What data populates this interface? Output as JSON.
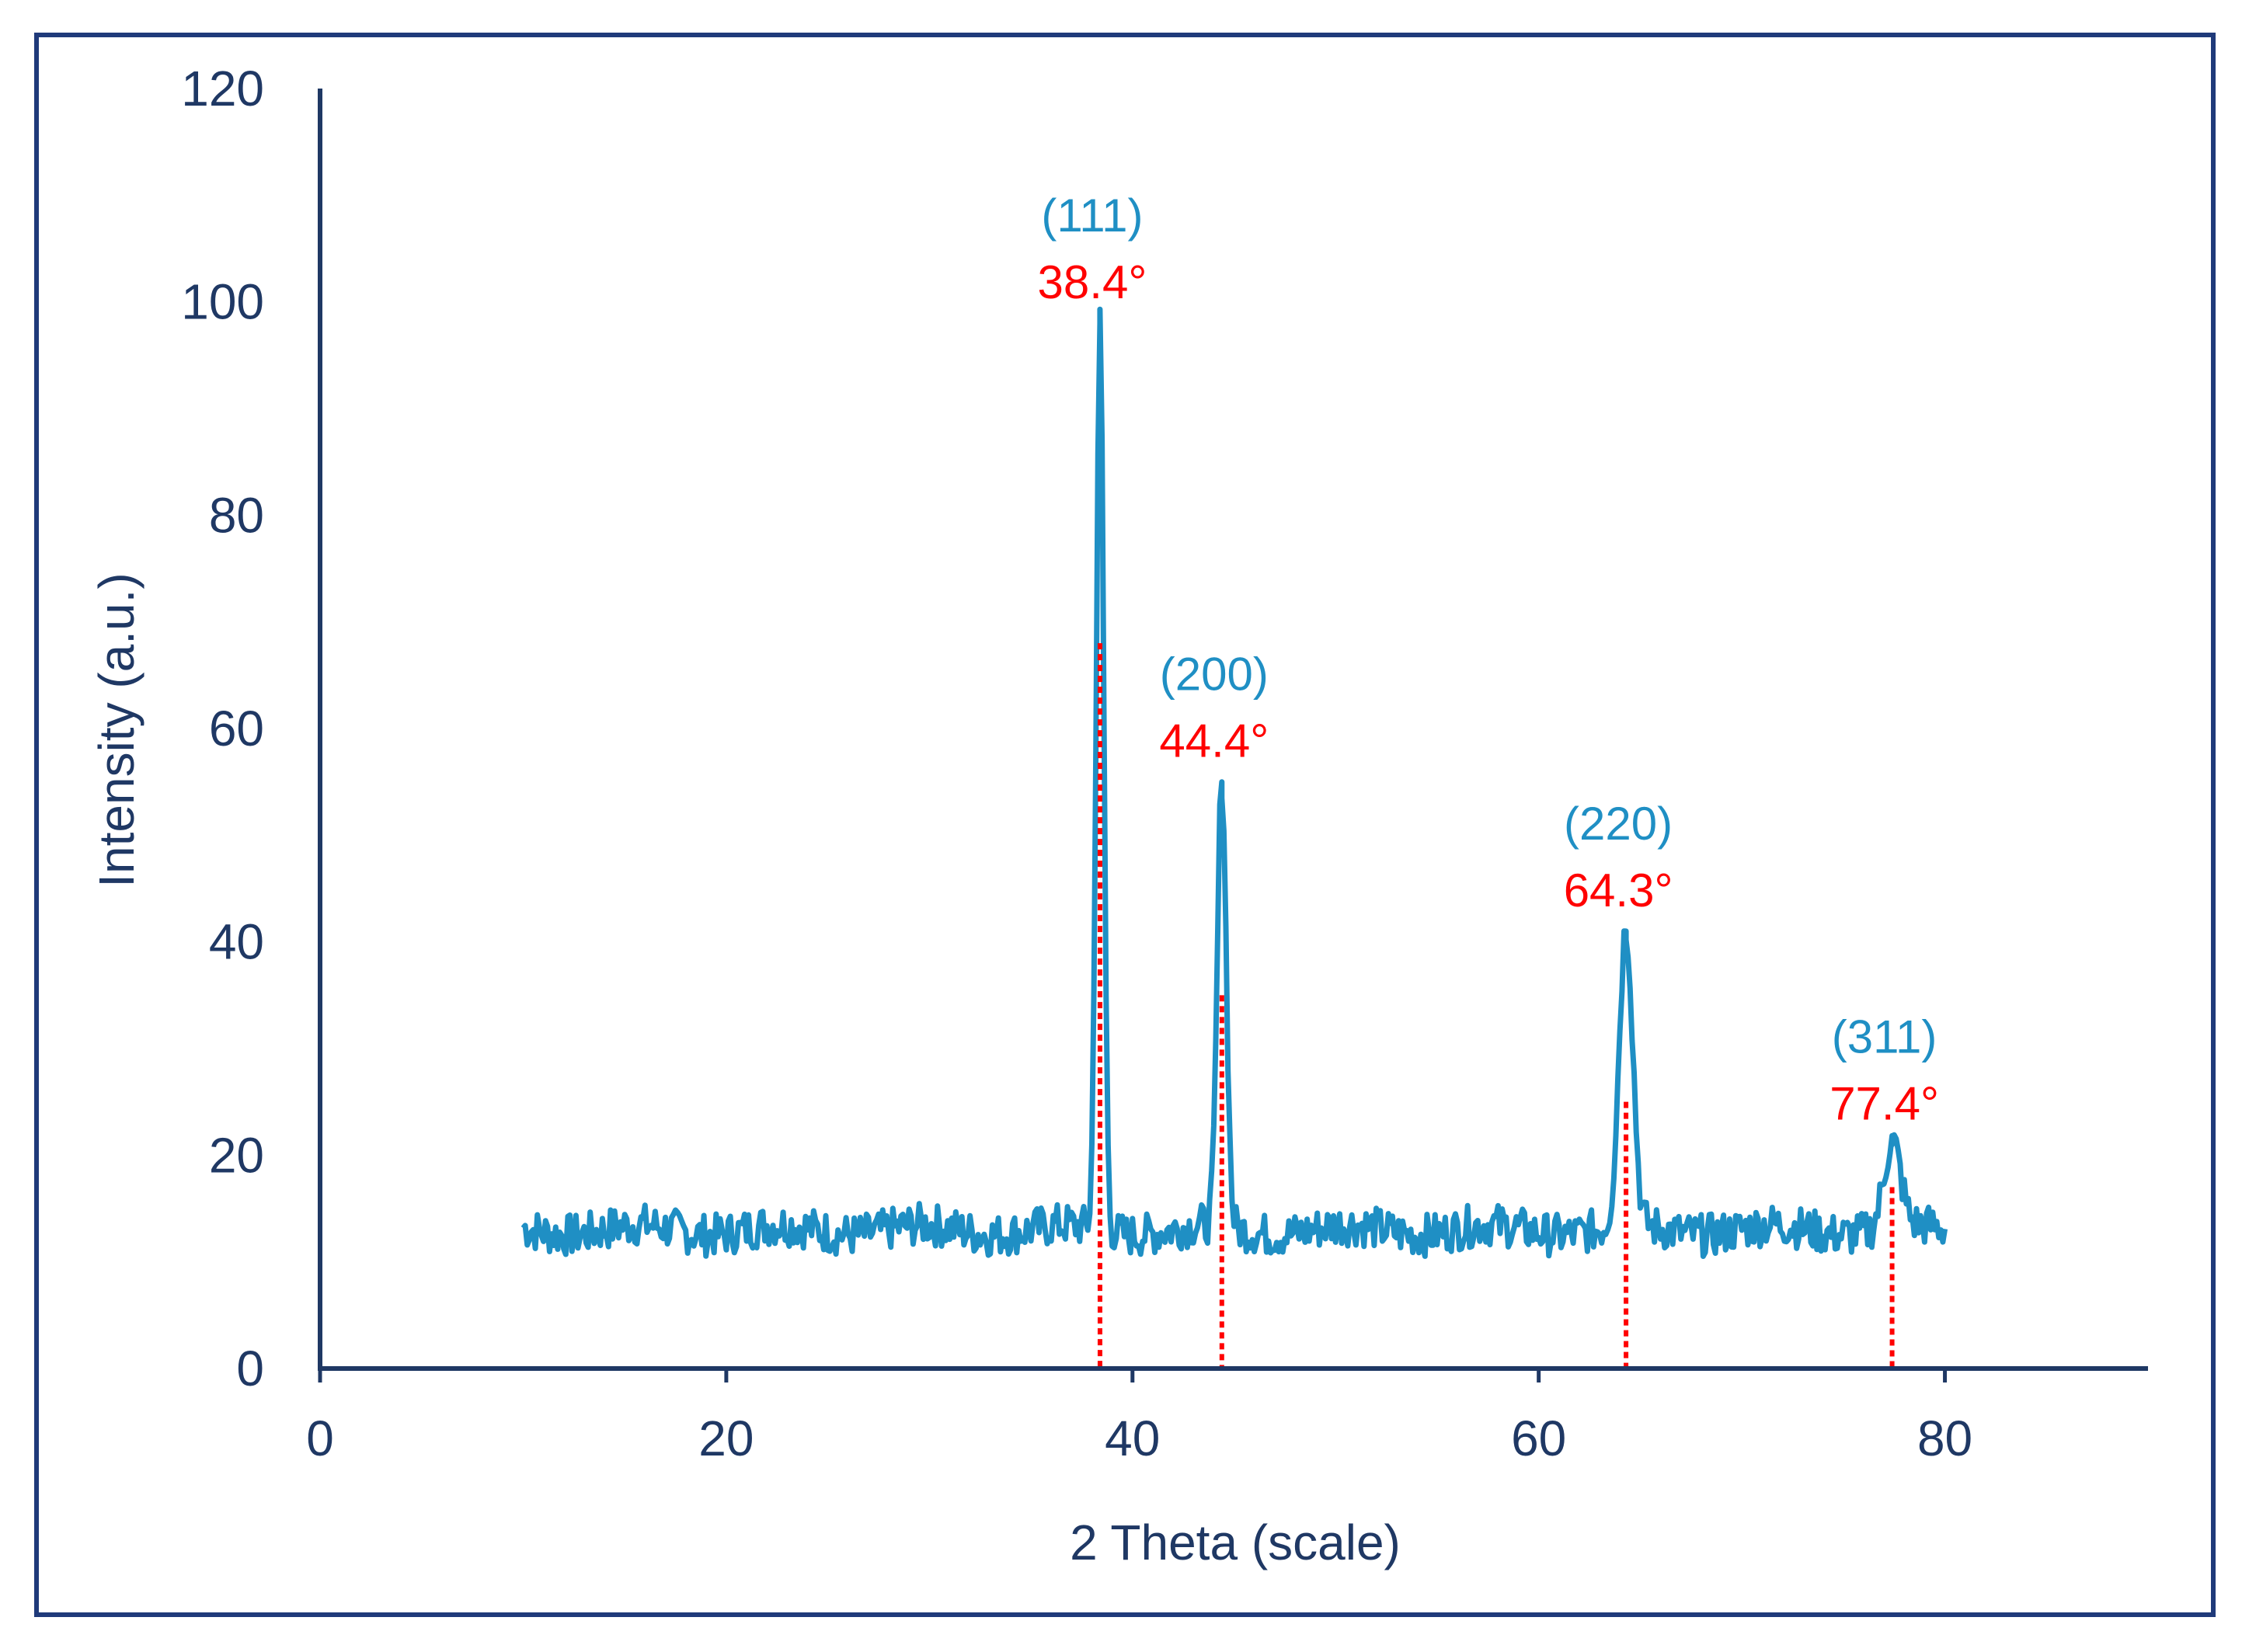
{
  "chart_data": {
    "type": "line",
    "xlabel": "2 Theta (scale)",
    "ylabel": "Intensity (a.u.)",
    "xlim": [
      0,
      90
    ],
    "ylim": [
      0,
      120
    ],
    "x_ticks": [
      0,
      20,
      40,
      60,
      80
    ],
    "y_ticks": [
      0,
      20,
      40,
      60,
      80,
      100,
      120
    ],
    "grid": false,
    "colors": {
      "series": "#1f8fc4",
      "marker": "#ff0000",
      "axis": "#1f3864",
      "frame": "#1f3a7a"
    },
    "series": [
      {
        "baseline": 13,
        "x_range": [
          10,
          80
        ],
        "noise_amplitude": 2
      }
    ],
    "peaks": [
      {
        "x": 38.4,
        "y": 98,
        "hkl": "(111)",
        "angle_label": "38.4°",
        "marker_top": 68
      },
      {
        "x": 44.4,
        "y": 55,
        "hkl": "(200)",
        "angle_label": "44.4°",
        "marker_top": 35
      },
      {
        "x": 64.3,
        "y": 41,
        "hkl": "(220)",
        "angle_label": "64.3°",
        "marker_top": 25
      },
      {
        "x": 77.4,
        "y": 21,
        "hkl": "(311)",
        "angle_label": "77.4°",
        "marker_top": 17
      }
    ]
  }
}
